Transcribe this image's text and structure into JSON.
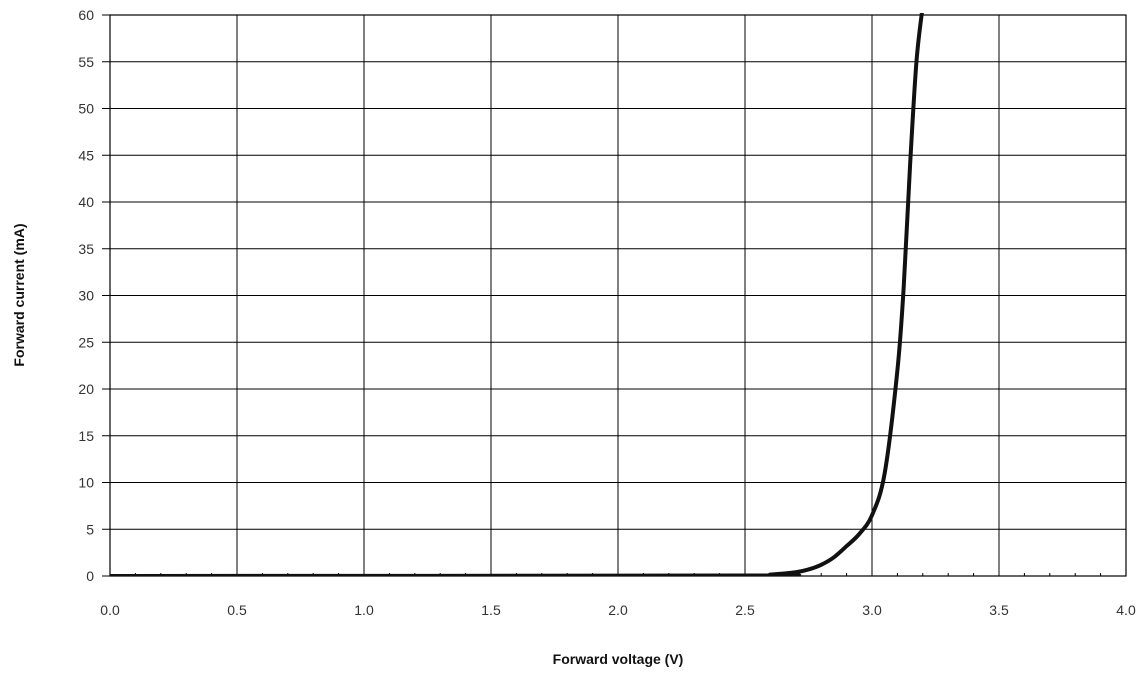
{
  "chart_data": {
    "type": "line",
    "title": "",
    "xlabel": "Forward voltage (V)",
    "ylabel": "Forward current (mA)",
    "xlim": [
      0.0,
      4.0
    ],
    "ylim": [
      0,
      60
    ],
    "x_ticks": [
      "0.0",
      "0.5",
      "1.0",
      "1.5",
      "2.0",
      "2.5",
      "3.0",
      "3.5",
      "4.0"
    ],
    "y_ticks": [
      "0",
      "5",
      "10",
      "15",
      "20",
      "25",
      "30",
      "35",
      "40",
      "45",
      "50",
      "55",
      "60"
    ],
    "grid": true,
    "legend": "none",
    "series": [
      {
        "color": "#111111",
        "x": [
          0.0,
          2.5,
          2.6,
          2.7,
          2.75,
          2.8,
          2.85,
          2.9,
          2.95,
          3.0,
          3.05,
          3.1,
          3.125,
          3.15,
          3.175,
          3.2
        ],
        "y": [
          0,
          0.05,
          0.15,
          0.4,
          0.7,
          1.2,
          2.0,
          3.2,
          4.5,
          6.5,
          11,
          22,
          31,
          44,
          55,
          61
        ]
      }
    ]
  }
}
